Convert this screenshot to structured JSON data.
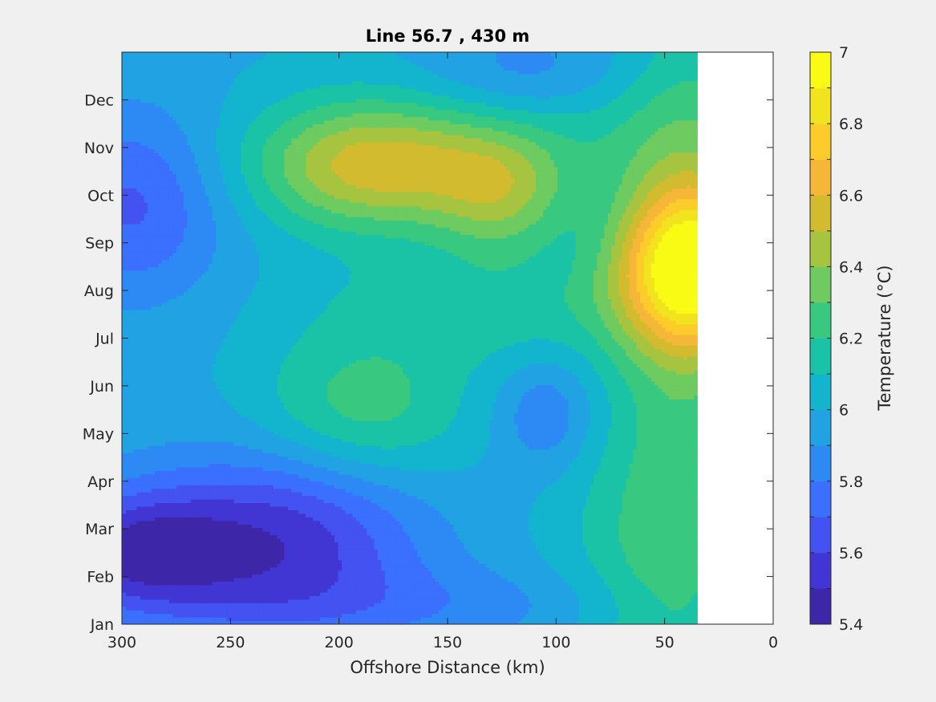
{
  "chart_data": {
    "type": "heatmap",
    "title": "Line 56.7 , 430 m",
    "xlabel": "Offshore Distance (km)",
    "ylabel": "",
    "x_axis": {
      "min": 0,
      "max": 300,
      "reversed": true,
      "ticks": [
        300,
        250,
        200,
        150,
        100,
        50,
        0
      ],
      "tick_labels": [
        "300",
        "250",
        "200",
        "150",
        "100",
        "50",
        "0"
      ]
    },
    "y_axis": {
      "tick_labels": [
        "Jan",
        "Feb",
        "Mar",
        "Apr",
        "May",
        "Jun",
        "Jul",
        "Aug",
        "Sep",
        "Oct",
        "Nov",
        "Dec"
      ],
      "tick_values": [
        0,
        1,
        2,
        3,
        4,
        5,
        6,
        7,
        8,
        9,
        10,
        11
      ],
      "range": [
        0,
        12
      ]
    },
    "data_extent_km": [
      35,
      300
    ],
    "colorbar": {
      "label": "Temperature (°C)",
      "min": 5.4,
      "max": 7.0,
      "step": 0.1,
      "ticks": [
        5.4,
        5.6,
        5.8,
        6.0,
        6.2,
        6.4,
        6.6,
        6.8,
        7.0
      ],
      "tick_labels": [
        "5.4",
        "5.6",
        "5.8",
        "6",
        "6.2",
        "6.4",
        "6.6",
        "6.8",
        "7"
      ],
      "colors": [
        "#3e26a8",
        "#4136d4",
        "#4352f0",
        "#3b6ffd",
        "#2d8af4",
        "#21a2e3",
        "#12b5cd",
        "#1ac2a6",
        "#38c880",
        "#6dcb60",
        "#a6c43f",
        "#d2bb2e",
        "#f6b738",
        "#fbcc2a",
        "#f1e41e",
        "#f9fb15"
      ]
    },
    "field": {
      "background": 5.95,
      "features": [
        {
          "name": "warm core nearshore Aug-Sep",
          "x_km": 38,
          "y_month": 7.55,
          "value": 6.9
        },
        {
          "name": "warm patch 185km Nov",
          "x_km": 185,
          "y_month": 9.6,
          "value": 6.6
        },
        {
          "name": "warm patch 125km Oct",
          "x_km": 125,
          "y_month": 9.0,
          "value": 6.45
        },
        {
          "name": "band 185km Jun",
          "x_km": 190,
          "y_month": 4.5,
          "value": 6.3
        },
        {
          "name": "cold core 228km Mar",
          "x_km": 228,
          "y_month": 1.75,
          "value": 5.5
        },
        {
          "name": "cold core 295km Mar",
          "x_km": 295,
          "y_month": 1.5,
          "value": 5.45
        },
        {
          "name": "cold patch 295km Oct",
          "x_km": 295,
          "y_month": 8.8,
          "value": 5.65
        },
        {
          "name": "cold patch 110km Dec",
          "x_km": 110,
          "y_month": 11.3,
          "value": 5.75
        },
        {
          "name": "cold patch 105km Jun",
          "x_km": 105,
          "y_month": 4.4,
          "value": 5.8
        },
        {
          "name": "nearshore band Jan-May",
          "x_km": 50,
          "y_month": 2.0,
          "value": 6.35
        }
      ]
    }
  }
}
